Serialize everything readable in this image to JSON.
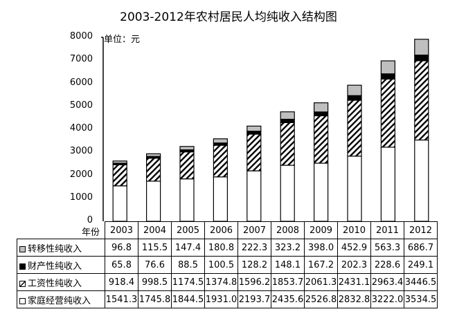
{
  "chart_data": {
    "type": "bar",
    "stacked": true,
    "title": "2003-2012年农村居民人均纯收入结构图",
    "unit_label": "单位：元",
    "xlabel": "年份",
    "ylabel": "",
    "ylim": [
      0,
      8000
    ],
    "yticks": [
      0,
      1000,
      2000,
      3000,
      4000,
      5000,
      6000,
      7000,
      8000
    ],
    "categories": [
      "2003",
      "2004",
      "2005",
      "2006",
      "2007",
      "2008",
      "2009",
      "2010",
      "2011",
      "2012"
    ],
    "series": [
      {
        "name": "家庭经营纯收入",
        "fill": "white",
        "color": "#ffffff",
        "values": [
          1541.3,
          1745.8,
          1844.5,
          1931.0,
          2193.7,
          2435.6,
          2526.8,
          2832.8,
          3222.0,
          3534.5
        ],
        "display": [
          "1541.3",
          "1745.8",
          "1844.5",
          "1931.0",
          "2193.7",
          "2435.6",
          "2526.8",
          "2832.8",
          "3222.0",
          "3534.5"
        ]
      },
      {
        "name": "工资性纯收入",
        "fill": "hatch",
        "color": "#000000",
        "values": [
          918.4,
          998.5,
          1174.5,
          1374.8,
          1596.2,
          1853.7,
          2061.3,
          2431.1,
          2963.4,
          3446.5
        ],
        "display": [
          "918.4",
          "998.5",
          "1174.5",
          "1374.8",
          "1596.2",
          "1853.7",
          "2061.3",
          "2431.1",
          "2963.4",
          "3446.5"
        ]
      },
      {
        "name": "财产性纯收入",
        "fill": "black",
        "color": "#000000",
        "values": [
          65.8,
          76.6,
          88.5,
          100.5,
          128.2,
          148.1,
          167.2,
          202.3,
          228.6,
          249.1
        ],
        "display": [
          "65.8",
          "76.6",
          "88.5",
          "100.5",
          "128.2",
          "148.1",
          "167.2",
          "202.3",
          "228.6",
          "249.1"
        ]
      },
      {
        "name": "转移性纯收入",
        "fill": "gray",
        "color": "#bfbfbf",
        "values": [
          96.8,
          115.5,
          147.4,
          180.8,
          222.3,
          323.2,
          398.0,
          452.9,
          563.3,
          686.7
        ],
        "display": [
          "96.8",
          "115.5",
          "147.4",
          "180.8",
          "222.3",
          "323.2",
          "398.0",
          "452.9",
          "563.3",
          "686.7"
        ]
      }
    ],
    "data_table_rows": [
      {
        "label": "转移性纯收入",
        "marker": "gray",
        "series_index": 3
      },
      {
        "label": "财产性纯收入",
        "marker": "black",
        "series_index": 2
      },
      {
        "label": "工资性纯收入",
        "marker": "hatch",
        "series_index": 1
      },
      {
        "label": "家庭经营纯收入",
        "marker": "white",
        "series_index": 0
      }
    ],
    "grid": false,
    "legend_position": "data-table"
  }
}
